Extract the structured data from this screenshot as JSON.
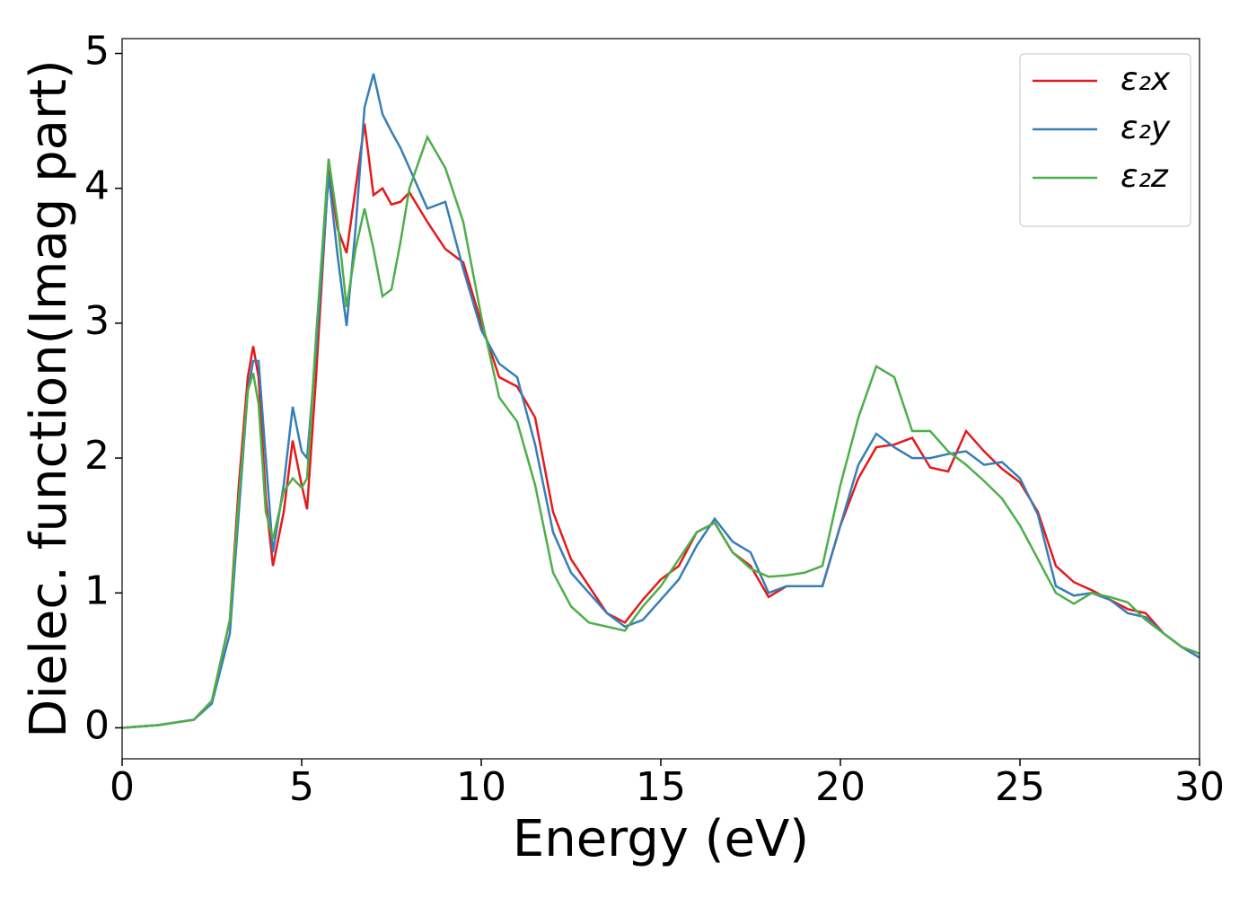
{
  "chart_data": {
    "type": "line",
    "xlabel": "Energy (eV)",
    "ylabel": "Dielec. function(Imag part)",
    "x": [
      0,
      1,
      2,
      2.5,
      3,
      3.25,
      3.5,
      3.65,
      3.8,
      4,
      4.2,
      4.5,
      4.75,
      5,
      5.15,
      5.4,
      5.75,
      6,
      6.25,
      6.5,
      6.75,
      7,
      7.25,
      7.5,
      7.75,
      8,
      8.5,
      9,
      9.5,
      10,
      10.5,
      11,
      11.5,
      12,
      12.5,
      13,
      13.5,
      14,
      14.5,
      15,
      15.5,
      16,
      16.5,
      17,
      17.5,
      18,
      18.5,
      19,
      19.5,
      20,
      20.5,
      21,
      21.5,
      22,
      22.5,
      23,
      23.5,
      24,
      24.5,
      25,
      25.5,
      26,
      26.5,
      27,
      27.5,
      28,
      28.5,
      29,
      29.5,
      30
    ],
    "series": [
      {
        "name": "ε₂x",
        "color": "#e41a1c",
        "values": [
          0,
          0.02,
          0.06,
          0.2,
          0.8,
          1.8,
          2.6,
          2.83,
          2.6,
          1.7,
          1.2,
          1.6,
          2.13,
          1.8,
          1.62,
          2.6,
          4.15,
          3.7,
          3.52,
          4.0,
          4.48,
          3.95,
          4.0,
          3.88,
          3.9,
          3.97,
          3.75,
          3.55,
          3.45,
          3.0,
          2.6,
          2.53,
          2.3,
          1.6,
          1.25,
          1.05,
          0.85,
          0.78,
          0.95,
          1.1,
          1.2,
          1.45,
          1.52,
          1.3,
          1.2,
          0.97,
          1.05,
          1.05,
          1.05,
          1.5,
          1.85,
          2.08,
          2.1,
          2.15,
          1.93,
          1.9,
          2.2,
          2.05,
          1.92,
          1.82,
          1.6,
          1.2,
          1.08,
          1.02,
          0.95,
          0.88,
          0.85,
          0.7,
          0.6,
          0.52
        ]
      },
      {
        "name": "ε₂y",
        "color": "#377eb8",
        "values": [
          0,
          0.02,
          0.06,
          0.18,
          0.7,
          1.6,
          2.5,
          2.72,
          2.72,
          2.0,
          1.3,
          1.8,
          2.38,
          2.05,
          2.0,
          2.8,
          4.1,
          3.5,
          2.98,
          3.7,
          4.6,
          4.85,
          4.55,
          4.42,
          4.3,
          4.15,
          3.85,
          3.9,
          3.4,
          2.95,
          2.7,
          2.6,
          2.1,
          1.45,
          1.15,
          1.0,
          0.85,
          0.75,
          0.8,
          0.95,
          1.1,
          1.35,
          1.55,
          1.38,
          1.3,
          1.0,
          1.05,
          1.05,
          1.05,
          1.5,
          1.95,
          2.18,
          2.08,
          2.0,
          2.0,
          2.03,
          2.05,
          1.95,
          1.97,
          1.85,
          1.58,
          1.05,
          0.98,
          1.0,
          0.95,
          0.85,
          0.82,
          0.7,
          0.6,
          0.52
        ]
      },
      {
        "name": "ε₂z",
        "color": "#4daf4a",
        "values": [
          0,
          0.02,
          0.06,
          0.2,
          0.8,
          1.7,
          2.5,
          2.63,
          2.4,
          1.6,
          1.4,
          1.75,
          1.85,
          1.78,
          1.85,
          2.9,
          4.22,
          3.75,
          3.12,
          3.55,
          3.85,
          3.55,
          3.2,
          3.25,
          3.6,
          4.0,
          4.38,
          4.15,
          3.75,
          3.05,
          2.45,
          2.27,
          1.8,
          1.15,
          0.9,
          0.78,
          0.75,
          0.72,
          0.9,
          1.05,
          1.25,
          1.45,
          1.52,
          1.3,
          1.18,
          1.12,
          1.13,
          1.15,
          1.2,
          1.8,
          2.3,
          2.68,
          2.6,
          2.2,
          2.2,
          2.05,
          1.95,
          1.83,
          1.7,
          1.5,
          1.25,
          1.0,
          0.92,
          1.0,
          0.97,
          0.93,
          0.8,
          0.7,
          0.6,
          0.55
        ]
      }
    ],
    "xlim": [
      0,
      30
    ],
    "xticks": [
      0,
      5,
      10,
      15,
      20,
      25,
      30
    ],
    "ylim": [
      -0.23,
      5.11
    ],
    "yticks": [
      0,
      1,
      2,
      3,
      4,
      5
    ],
    "grid": false,
    "legend": "upper right"
  }
}
